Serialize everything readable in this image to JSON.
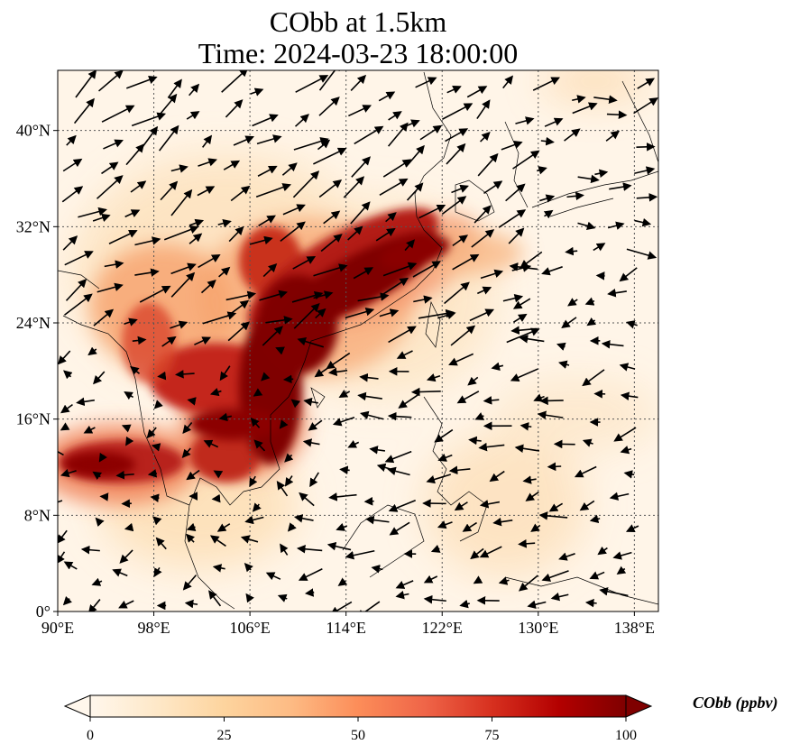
{
  "title": {
    "line1": "CObb at 1.5km",
    "line2": "Time: 2024-03-23 18:00:00"
  },
  "map": {
    "lon_range": [
      90,
      140
    ],
    "lat_range": [
      0,
      45
    ],
    "lon_ticks": [
      90,
      98,
      106,
      114,
      122,
      130,
      138
    ],
    "lat_ticks": [
      0,
      8,
      16,
      24,
      32,
      40
    ],
    "lon_tick_labels": [
      "90°E",
      "98°E",
      "106°E",
      "114°E",
      "122°E",
      "130°E",
      "138°E"
    ],
    "lat_tick_labels": [
      "0°",
      "8°N",
      "16°N",
      "24°N",
      "32°N",
      "40°N"
    ],
    "gridlines": true,
    "colormap": "OrRd",
    "field": "CObb concentration (ppbv)",
    "high_concentration_region": "Indochina northeastward to East China coast"
  },
  "colorbar": {
    "min": 0,
    "max": 100,
    "ticks": [
      0,
      25,
      50,
      75,
      100
    ],
    "tick_labels": [
      "0",
      "25",
      "50",
      "75",
      "100"
    ],
    "label": "CObb (ppbv)",
    "extend": "both",
    "colors": [
      "#fff7ec",
      "#fee8c8",
      "#fdd49e",
      "#fdbb84",
      "#fc8d59",
      "#ef6548",
      "#d7301f",
      "#b30000",
      "#7f0000"
    ]
  }
}
